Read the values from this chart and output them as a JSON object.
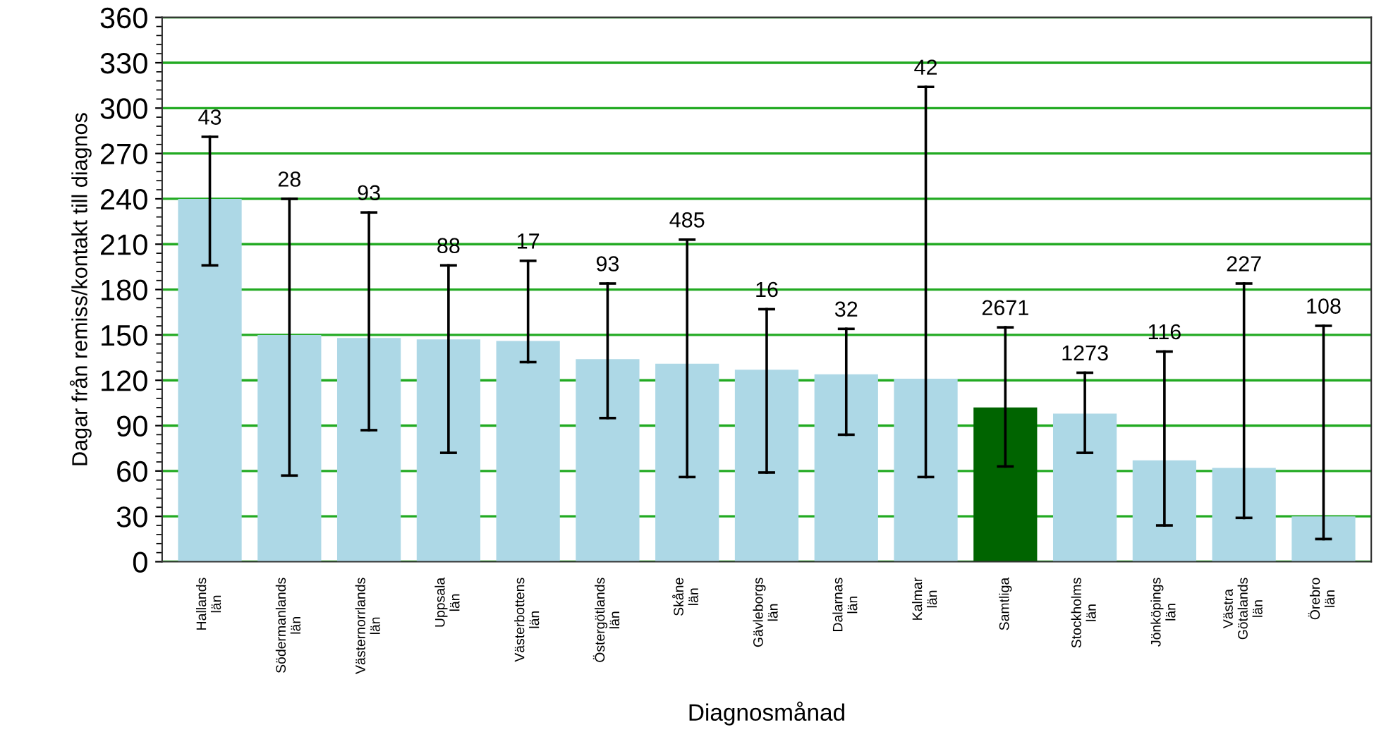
{
  "chart_data": {
    "type": "bar",
    "xlabel": "Diagnosmånad",
    "ylabel": "Dagar från remiss/kontakt till diagnos",
    "categories": [
      "Hallands\nlän",
      "Södermanlands\nlän",
      "Västernorrlands\nlän",
      "Uppsala\nlän",
      "Västerbottens\nlän",
      "Östergötlands\nlän",
      "Skåne\nlän",
      "Gävleborgs\nlän",
      "Dalarnas\nlän",
      "Kalmar\nlän",
      "Samtliga",
      "Stockholms\nlän",
      "Jönköpings\nlän",
      "Västra\nGötalands\nlän",
      "Örebro\nlän"
    ],
    "values": [
      240,
      150,
      148,
      147,
      146,
      134,
      131,
      127,
      124,
      121,
      102,
      98,
      67,
      62,
      30
    ],
    "colors": [
      "#add8e6",
      "#add8e6",
      "#add8e6",
      "#add8e6",
      "#add8e6",
      "#add8e6",
      "#add8e6",
      "#add8e6",
      "#add8e6",
      "#add8e6",
      "#006400",
      "#add8e6",
      "#add8e6",
      "#add8e6",
      "#add8e6"
    ],
    "errors": [
      [
        196,
        281
      ],
      [
        57,
        240
      ],
      [
        87,
        231
      ],
      [
        72,
        196
      ],
      [
        132,
        199
      ],
      [
        95,
        184
      ],
      [
        56,
        213
      ],
      [
        59,
        167
      ],
      [
        84,
        154
      ],
      [
        56,
        314
      ],
      [
        63,
        155
      ],
      [
        72,
        125
      ],
      [
        24,
        139
      ],
      [
        29,
        184
      ],
      [
        15,
        156
      ]
    ],
    "annotations": [
      {
        "text": "43",
        "x": "Hallands\nlän",
        "y": 281
      },
      {
        "text": "28",
        "x": "Södermanlands\nlän",
        "y": 240
      },
      {
        "text": "93",
        "x": "Västernorrlands\nlän",
        "y": 231
      },
      {
        "text": "88",
        "x": "Uppsala\nlän",
        "y": 196
      },
      {
        "text": "17",
        "x": "Västerbottens\nlän",
        "y": 199
      },
      {
        "text": "93",
        "x": "Östergötlands\nlän",
        "y": 184
      },
      {
        "text": "485",
        "x": "Skåne\nlän",
        "y": 213
      },
      {
        "text": "16",
        "x": "Gävleborgs\nlän",
        "y": 167
      },
      {
        "text": "32",
        "x": "Dalarnas\nlän",
        "y": 154
      },
      {
        "text": "42",
        "x": "Kalmar\nlän",
        "y": 314
      },
      {
        "text": "2671",
        "x": "Samtliga",
        "y": 155
      },
      {
        "text": "1273",
        "x": "Stockholms\nlän",
        "y": 125
      },
      {
        "text": "116",
        "x": "Jönköpings\nlän",
        "y": 139
      },
      {
        "text": "227",
        "x": "Västra\nGötalands\nlän",
        "y": 184
      },
      {
        "text": "108",
        "x": "Örebro\nlän",
        "y": 156
      }
    ],
    "ylim": [
      0,
      360
    ],
    "yticks": [
      0,
      30,
      60,
      90,
      120,
      150,
      180,
      210,
      240,
      270,
      300,
      330,
      360
    ],
    "grid": "y",
    "legend": false
  }
}
